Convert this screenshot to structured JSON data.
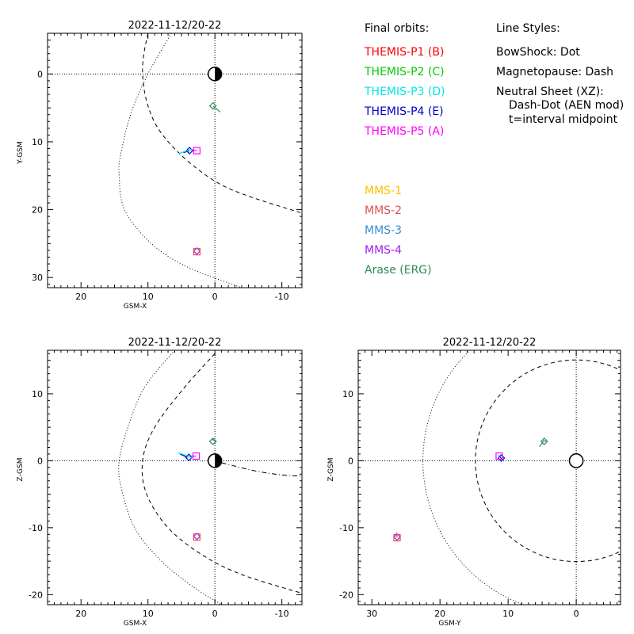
{
  "chart_data": [
    {
      "id": "xy",
      "type": "scatter",
      "title": "2022-11-12/20-22",
      "xlabel": "GSM-X",
      "ylabel": "Y-GSM",
      "xlim": [
        25,
        -13
      ],
      "ylim": [
        -6,
        31.5
      ],
      "y_inverted": true,
      "xticks": [
        20,
        10,
        0,
        -10
      ],
      "yticks": [
        0,
        10,
        20,
        30
      ],
      "grid": false,
      "earth": {
        "x": 0,
        "y": 0,
        "r": 1,
        "shading": "night-side"
      },
      "boundaries": [
        {
          "name": "BowShock",
          "style": "dot",
          "points": [
            [
              6.5,
              -6
            ],
            [
              10,
              0
            ],
            [
              12.6,
              6
            ],
            [
              14.1,
              12
            ],
            [
              14.3,
              15
            ],
            [
              13.5,
              20
            ],
            [
              9.5,
              25
            ],
            [
              4,
              28.5
            ],
            [
              -4,
              31.5
            ]
          ]
        },
        {
          "name": "Magnetopause",
          "style": "dash",
          "points": [
            [
              10,
              -6
            ],
            [
              10.6,
              -3
            ],
            [
              10.8,
              0
            ],
            [
              10.2,
              4
            ],
            [
              8.5,
              8
            ],
            [
              5,
              12
            ],
            [
              0,
              15.8
            ],
            [
              -5,
              18
            ],
            [
              -13,
              20.5
            ]
          ]
        }
      ],
      "series": [
        {
          "name": "THEMIS-P4 (E)",
          "color": "#0000cc",
          "path": [
            [
              4.7,
              11.6
            ],
            [
              3.8,
              11.3
            ]
          ],
          "marker": {
            "shape": "diamond",
            "at": [
              3.8,
              11.3
            ]
          }
        },
        {
          "name": "THEMIS-P5 (A)",
          "color": "#ff00ff",
          "path": [
            [
              2.7,
              11.3
            ],
            [
              3.4,
              11.2
            ]
          ],
          "marker": {
            "shape": "square",
            "at": [
              2.7,
              11.3
            ]
          }
        },
        {
          "name": "THEMIS-P3 (D)",
          "color": "#00e6e6",
          "path": [
            [
              3.5,
              11.1
            ],
            [
              5.4,
              11.7
            ]
          ],
          "marker": null
        },
        {
          "name": "MMS-4",
          "color": "#a020f0",
          "path": [
            [
              2.7,
              26.1
            ]
          ],
          "marker": {
            "shape": "diamond",
            "at": [
              2.7,
              26.1
            ]
          }
        },
        {
          "name": "MMS-2",
          "color": "#e05050",
          "path": [
            [
              2.7,
              26.2
            ]
          ],
          "marker": {
            "shape": "square",
            "at": [
              2.7,
              26.2
            ]
          }
        },
        {
          "name": "Arase (ERG)",
          "color": "#2e8b57",
          "path": [
            [
              -0.8,
              5.6
            ],
            [
              -0.3,
              5.2
            ],
            [
              0.3,
              4.7
            ]
          ],
          "marker": {
            "shape": "diamond",
            "at": [
              0.3,
              4.7
            ]
          }
        }
      ]
    },
    {
      "id": "xz",
      "type": "scatter",
      "title": "2022-11-12/20-22",
      "xlabel": "GSM-X",
      "ylabel": "Z-GSM",
      "xlim": [
        25,
        -13
      ],
      "ylim": [
        -21.5,
        16.5
      ],
      "y_inverted": false,
      "xticks": [
        20,
        10,
        0,
        -10
      ],
      "yticks": [
        -20,
        -10,
        0,
        10
      ],
      "grid": false,
      "earth": {
        "x": 0,
        "y": 0,
        "r": 1,
        "shading": "night-side"
      },
      "boundaries": [
        {
          "name": "BowShock",
          "style": "dot",
          "points": [
            [
              6,
              16.5
            ],
            [
              10.5,
              11
            ],
            [
              13,
              5
            ],
            [
              14.3,
              0
            ],
            [
              14,
              -4
            ],
            [
              12,
              -10
            ],
            [
              8,
              -15
            ],
            [
              3,
              -19
            ],
            [
              -1,
              -21.5
            ]
          ]
        },
        {
          "name": "Magnetopause",
          "style": "dash",
          "points": [
            [
              0,
              16
            ],
            [
              4.5,
              11
            ],
            [
              9,
              5
            ],
            [
              10.8,
              0
            ],
            [
              10.2,
              -5
            ],
            [
              7,
              -10
            ],
            [
              2,
              -14
            ],
            [
              -4,
              -17
            ],
            [
              -13,
              -19.8
            ]
          ]
        },
        {
          "name": "Neutral Sheet (XZ)",
          "style": "dashdot",
          "points": [
            [
              -1,
              -0.3
            ],
            [
              -3,
              -0.8
            ],
            [
              -5,
              -1.3
            ],
            [
              -7,
              -1.7
            ],
            [
              -9,
              -2
            ],
            [
              -11,
              -2.2
            ],
            [
              -13,
              -2.3
            ]
          ]
        }
      ],
      "series": [
        {
          "name": "THEMIS-P4 (E)",
          "color": "#0000cc",
          "path": [
            [
              5.2,
              1
            ],
            [
              4.1,
              0.5
            ]
          ],
          "marker": {
            "shape": "diamond",
            "at": [
              3.9,
              0.5
            ]
          }
        },
        {
          "name": "THEMIS-P5 (A)",
          "color": "#ff00ff",
          "path": [
            [
              2.8,
              0.7
            ],
            [
              3.5,
              0.7
            ]
          ],
          "marker": {
            "shape": "square",
            "at": [
              2.8,
              0.7
            ]
          }
        },
        {
          "name": "THEMIS-P3 (D)",
          "color": "#00e6e6",
          "path": [
            [
              3.2,
              0.4
            ],
            [
              5.5,
              1.2
            ]
          ],
          "marker": null
        },
        {
          "name": "MMS-4",
          "color": "#a020f0",
          "path": [
            [
              2.7,
              -11.3
            ]
          ],
          "marker": {
            "shape": "diamond",
            "at": [
              2.7,
              -11.3
            ]
          }
        },
        {
          "name": "MMS-2",
          "color": "#e05050",
          "path": [
            [
              2.7,
              -11.4
            ]
          ],
          "marker": {
            "shape": "square",
            "at": [
              2.7,
              -11.4
            ]
          }
        },
        {
          "name": "Arase (ERG)",
          "color": "#2e8b57",
          "path": [
            [
              0.5,
              3.2
            ],
            [
              -0.2,
              2.9
            ],
            [
              0.1,
              2.6
            ]
          ],
          "marker": {
            "shape": "diamond",
            "at": [
              0.3,
              2.9
            ]
          }
        }
      ]
    },
    {
      "id": "yz",
      "type": "scatter",
      "title": "2022-11-12/20-22",
      "xlabel": "GSM-Y",
      "ylabel": "Z-GSM",
      "xlim": [
        32,
        -6.5
      ],
      "ylim": [
        -21.5,
        16.5
      ],
      "y_inverted": false,
      "xticks": [
        30,
        20,
        10,
        0
      ],
      "yticks": [
        -20,
        -10,
        0,
        10
      ],
      "grid": false,
      "earth": {
        "x": 0,
        "y": 0,
        "r": 1,
        "shading": "none"
      },
      "boundaries": [
        {
          "name": "BowShock",
          "style": "dot",
          "circle": {
            "cx": 0,
            "cy": 0,
            "r": 22.5
          }
        },
        {
          "name": "Magnetopause",
          "style": "dash",
          "circle": {
            "cx": 0,
            "cy": 0,
            "r": 14.8
          }
        }
      ],
      "series": [
        {
          "name": "THEMIS-P4 (E)",
          "color": "#0000cc",
          "path": [
            [
              11.2,
              0.6
            ],
            [
              10.9,
              0.2
            ]
          ],
          "marker": {
            "shape": "diamond",
            "at": [
              11,
              0.4
            ]
          }
        },
        {
          "name": "THEMIS-P5 (A)",
          "color": "#ff00ff",
          "path": [
            [
              11.3,
              0.7
            ]
          ],
          "marker": {
            "shape": "square",
            "at": [
              11.3,
              0.7
            ]
          }
        },
        {
          "name": "THEMIS-P3 (D)",
          "color": "#00e6e6",
          "path": [
            [
              11.2,
              0.7
            ],
            [
              11.5,
              0.9
            ]
          ],
          "marker": null
        },
        {
          "name": "MMS-4",
          "color": "#a020f0",
          "path": [
            [
              26.3,
              -11.4
            ]
          ],
          "marker": {
            "shape": "diamond",
            "at": [
              26.3,
              -11.4
            ]
          }
        },
        {
          "name": "MMS-2",
          "color": "#e05050",
          "path": [
            [
              26.3,
              -11.5
            ],
            [
              26.4,
              -10.7
            ]
          ],
          "marker": {
            "shape": "square",
            "at": [
              26.3,
              -11.5
            ]
          }
        },
        {
          "name": "Arase (ERG)",
          "color": "#2e8b57",
          "path": [
            [
              5.4,
              2.1
            ],
            [
              5.1,
              2.5
            ],
            [
              4.8,
              3.0
            ],
            [
              4.4,
              2.9
            ]
          ],
          "marker": {
            "shape": "diamond",
            "at": [
              4.7,
              2.9
            ]
          }
        }
      ]
    }
  ],
  "legend": {
    "orbits_heading": "Final orbits:",
    "themis": [
      {
        "label": "THEMIS-P1 (B)",
        "color": "#ff0000"
      },
      {
        "label": "THEMIS-P2 (C)",
        "color": "#00cc00"
      },
      {
        "label": "THEMIS-P3 (D)",
        "color": "#00e6e6"
      },
      {
        "label": "THEMIS-P4 (E)",
        "color": "#0000cc"
      },
      {
        "label": "THEMIS-P5 (A)",
        "color": "#ff00ff"
      }
    ],
    "line_styles_heading": "Line Styles:",
    "line_styles": [
      "BowShock: Dot",
      "Magnetopause: Dash",
      "Neutral Sheet (XZ):",
      "Dash-Dot (AEN mod)",
      "t=interval midpoint"
    ],
    "missions": [
      {
        "label": "MMS-1",
        "color": "#ffc000"
      },
      {
        "label": "MMS-2",
        "color": "#e05050"
      },
      {
        "label": "MMS-3",
        "color": "#3c8cd2"
      },
      {
        "label": "MMS-4",
        "color": "#a020f0"
      },
      {
        "label": "Arase (ERG)",
        "color": "#2e8b57"
      }
    ]
  }
}
